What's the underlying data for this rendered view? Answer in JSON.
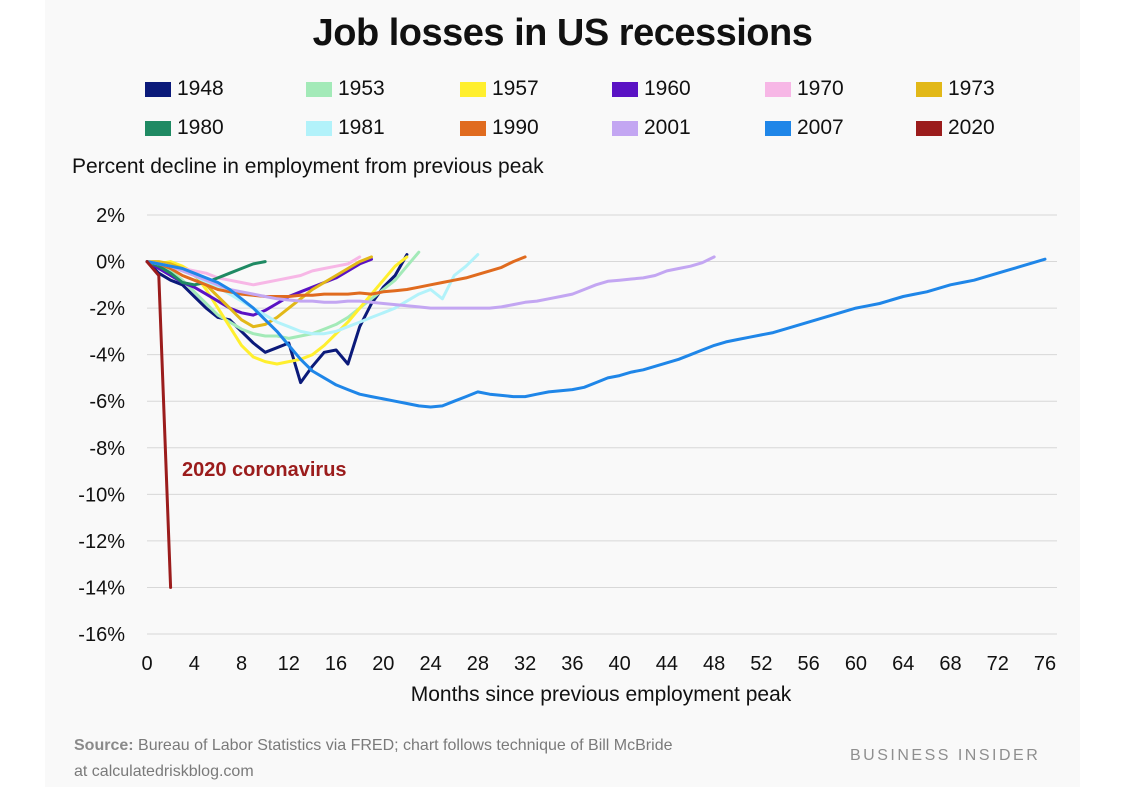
{
  "title": "Job losses in US recessions",
  "subtitle": "Percent decline in employment from previous peak",
  "source_label": "Source:",
  "source_text": "Bureau of Labor Statistics via FRED; chart follows technique of Bill McBride",
  "source_text2": "at calculatedriskblog.com",
  "brand": "BUSINESS INSIDER",
  "chart_data": {
    "type": "line",
    "title": "Job losses in US recessions",
    "xlabel": "Months since previous employment peak",
    "ylabel": "Percent decline in employment from previous peak",
    "xlim": [
      0,
      76
    ],
    "ylim": [
      -16,
      2
    ],
    "x_ticks": [
      0,
      4,
      8,
      12,
      16,
      20,
      24,
      28,
      32,
      36,
      40,
      44,
      48,
      52,
      56,
      60,
      64,
      68,
      72,
      76
    ],
    "y_ticks": [
      2,
      0,
      -2,
      -4,
      -6,
      -8,
      -10,
      -12,
      -14,
      -16
    ],
    "y_tick_labels": [
      "2%",
      "0%",
      "-2%",
      "-4%",
      "-6%",
      "-8%",
      "-10%",
      "-12%",
      "-14%",
      "-16%"
    ],
    "grid": "horizontal",
    "annotation": {
      "text": "2020 coronavirus",
      "color": "#9b1c1c"
    },
    "series": [
      {
        "name": "1948",
        "color": "#0b1a7a",
        "values": [
          0,
          -0.5,
          -0.8,
          -1.0,
          -1.5,
          -2.0,
          -2.4,
          -2.5,
          -3.0,
          -3.5,
          -3.9,
          -3.7,
          -3.5,
          -5.2,
          -4.5,
          -3.9,
          -3.8,
          -4.4,
          -2.8,
          -1.8,
          -1.1,
          -0.6,
          0.3
        ]
      },
      {
        "name": "1953",
        "color": "#a3eab8",
        "values": [
          0,
          -0.2,
          -0.4,
          -0.8,
          -1.3,
          -1.8,
          -2.3,
          -2.6,
          -2.9,
          -3.1,
          -3.2,
          -3.2,
          -3.3,
          -3.2,
          -3.1,
          -2.9,
          -2.7,
          -2.4,
          -2.0,
          -1.6,
          -1.2,
          -0.8,
          -0.2,
          0.4
        ]
      },
      {
        "name": "1957",
        "color": "#ffef2e",
        "values": [
          0,
          -0.1,
          0,
          -0.2,
          -0.5,
          -1.2,
          -2.0,
          -2.8,
          -3.6,
          -4.1,
          -4.3,
          -4.4,
          -4.3,
          -4.2,
          -4.0,
          -3.6,
          -3.1,
          -2.6,
          -2.0,
          -1.4,
          -0.8,
          -0.2,
          0.2
        ]
      },
      {
        "name": "1960",
        "color": "#5a12c4",
        "values": [
          0,
          -0.3,
          -0.6,
          -0.9,
          -1.1,
          -1.4,
          -1.7,
          -2.0,
          -2.2,
          -2.3,
          -2.1,
          -1.8,
          -1.5,
          -1.3,
          -1.1,
          -0.9,
          -0.7,
          -0.4,
          -0.1,
          0.1
        ]
      },
      {
        "name": "1970",
        "color": "#f7b7e6",
        "values": [
          0,
          -0.1,
          -0.2,
          -0.3,
          -0.4,
          -0.5,
          -0.7,
          -0.8,
          -0.9,
          -1.0,
          -0.9,
          -0.8,
          -0.7,
          -0.6,
          -0.4,
          -0.3,
          -0.2,
          -0.1,
          0.2
        ]
      },
      {
        "name": "1973",
        "color": "#e2b818",
        "values": [
          0,
          0,
          -0.1,
          -0.3,
          -0.6,
          -1.0,
          -1.5,
          -2.0,
          -2.5,
          -2.8,
          -2.7,
          -2.4,
          -2.0,
          -1.6,
          -1.2,
          -0.9,
          -0.6,
          -0.3,
          0,
          0.2
        ]
      },
      {
        "name": "1980",
        "color": "#1f8a63",
        "values": [
          0,
          -0.2,
          -0.5,
          -0.9,
          -1.0,
          -0.9,
          -0.7,
          -0.5,
          -0.3,
          -0.1,
          0
        ]
      },
      {
        "name": "1981",
        "color": "#b2f2fa",
        "values": [
          0,
          -0.1,
          -0.2,
          -0.4,
          -0.6,
          -0.9,
          -1.1,
          -1.4,
          -1.7,
          -2.0,
          -2.3,
          -2.6,
          -2.8,
          -3.0,
          -3.1,
          -3.1,
          -3.0,
          -2.8,
          -2.6,
          -2.4,
          -2.2,
          -2.0,
          -1.7,
          -1.4,
          -1.2,
          -1.6,
          -0.6,
          -0.2,
          0.3
        ]
      },
      {
        "name": "1990",
        "color": "#e06b1f",
        "values": [
          0,
          -0.1,
          -0.3,
          -0.6,
          -0.8,
          -1.0,
          -1.2,
          -1.3,
          -1.4,
          -1.45,
          -1.5,
          -1.5,
          -1.5,
          -1.45,
          -1.45,
          -1.4,
          -1.4,
          -1.4,
          -1.35,
          -1.4,
          -1.3,
          -1.25,
          -1.2,
          -1.1,
          -1.0,
          -0.9,
          -0.8,
          -0.7,
          -0.55,
          -0.4,
          -0.25,
          0,
          0.2
        ]
      },
      {
        "name": "2001",
        "color": "#c3a6f2",
        "values": [
          0,
          -0.1,
          -0.2,
          -0.4,
          -0.6,
          -0.8,
          -1.0,
          -1.2,
          -1.3,
          -1.4,
          -1.5,
          -1.6,
          -1.65,
          -1.7,
          -1.7,
          -1.75,
          -1.75,
          -1.7,
          -1.7,
          -1.75,
          -1.8,
          -1.85,
          -1.9,
          -1.95,
          -2.0,
          -2.0,
          -2.0,
          -2.0,
          -2.0,
          -2.0,
          -1.95,
          -1.85,
          -1.75,
          -1.7,
          -1.6,
          -1.5,
          -1.4,
          -1.2,
          -1.0,
          -0.85,
          -0.8,
          -0.75,
          -0.7,
          -0.6,
          -0.4,
          -0.3,
          -0.2,
          -0.05,
          0.2
        ]
      },
      {
        "name": "2007",
        "color": "#1f86e8",
        "values": [
          0,
          -0.1,
          -0.2,
          -0.3,
          -0.5,
          -0.7,
          -0.9,
          -1.2,
          -1.6,
          -2.0,
          -2.5,
          -3.0,
          -3.6,
          -4.2,
          -4.7,
          -5.0,
          -5.3,
          -5.5,
          -5.7,
          -5.8,
          -5.9,
          -6.0,
          -6.1,
          -6.2,
          -6.25,
          -6.2,
          -6.0,
          -5.8,
          -5.6,
          -5.7,
          -5.75,
          -5.8,
          -5.8,
          -5.7,
          -5.6,
          -5.55,
          -5.5,
          -5.4,
          -5.2,
          -5.0,
          -4.9,
          -4.75,
          -4.65,
          -4.5,
          -4.35,
          -4.2,
          -4.0,
          -3.8,
          -3.6,
          -3.45,
          -3.35,
          -3.25,
          -3.15,
          -3.05,
          -2.9,
          -2.75,
          -2.6,
          -2.45,
          -2.3,
          -2.15,
          -2.0,
          -1.9,
          -1.8,
          -1.65,
          -1.5,
          -1.4,
          -1.3,
          -1.15,
          -1.0,
          -0.9,
          -0.8,
          -0.65,
          -0.5,
          -0.35,
          -0.2,
          -0.05,
          0.1
        ]
      },
      {
        "name": "2020",
        "color": "#9b1c1c",
        "values": [
          0,
          -0.6,
          -14.0
        ]
      }
    ]
  }
}
